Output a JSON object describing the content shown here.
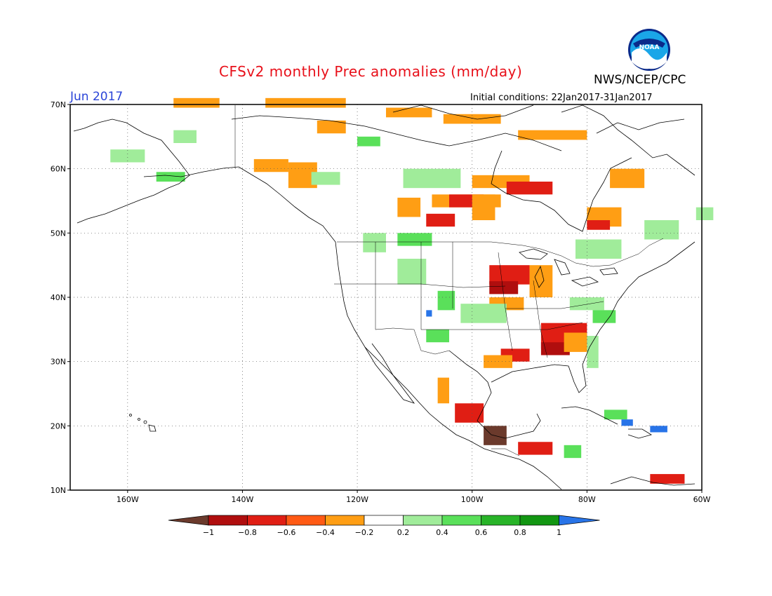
{
  "header": {
    "title": "CFSv2 monthly Prec anomalies (mm/day)",
    "agency": "NWS/NCEP/CPC",
    "logo_text": "NOAA",
    "valid_month": "Jun 2017",
    "initial_conditions": "Initial conditions: 22Jan2017-31Jan2017"
  },
  "map": {
    "lon_range": [
      -170,
      -60
    ],
    "lat_range": [
      10,
      70
    ],
    "lat_labels": [
      "70N",
      "60N",
      "50N",
      "40N",
      "30N",
      "20N",
      "10N"
    ],
    "lon_labels": [
      "160W",
      "140W",
      "120W",
      "100W",
      "80W",
      "60W"
    ],
    "grid": "dotted"
  },
  "colorbar": {
    "labels": [
      "−1",
      "−0.8",
      "−0.6",
      "−0.4",
      "−0.2",
      "0.2",
      "0.4",
      "0.6",
      "0.8",
      "1"
    ],
    "colors": [
      "#6b3a2c",
      "#b00e0e",
      "#e01e14",
      "#ff5a14",
      "#ff9e14",
      "#ffffff",
      "#a0ec9a",
      "#5ae05a",
      "#28b428",
      "#129612",
      "#2874e8"
    ]
  },
  "anomaly_regions": [
    {
      "category": "dry-0.4",
      "lon": -152,
      "lat": 69.5,
      "w": 8,
      "h": 1.5
    },
    {
      "category": "dry-0.4",
      "lon": -136,
      "lat": 69.5,
      "w": 14,
      "h": 1.5
    },
    {
      "category": "dry-0.4",
      "lon": -115,
      "lat": 68,
      "w": 8,
      "h": 1.5
    },
    {
      "category": "dry-0.4",
      "lon": -105,
      "lat": 67,
      "w": 10,
      "h": 1.5
    },
    {
      "category": "dry-0.4",
      "lon": -92,
      "lat": 64.5,
      "w": 12,
      "h": 1.5
    },
    {
      "category": "dry-0.4",
      "lon": -127,
      "lat": 65.5,
      "w": 5,
      "h": 2
    },
    {
      "category": "dry-0.4",
      "lon": -138,
      "lat": 59.5,
      "w": 6,
      "h": 2
    },
    {
      "category": "dry-0.4",
      "lon": -132,
      "lat": 57,
      "w": 5,
      "h": 4
    },
    {
      "category": "dry-0.4",
      "lon": -100,
      "lat": 57,
      "w": 10,
      "h": 2
    },
    {
      "category": "dry-0.6",
      "lon": -94,
      "lat": 56,
      "w": 8,
      "h": 2
    },
    {
      "category": "dry-0.4",
      "lon": -113,
      "lat": 52.5,
      "w": 4,
      "h": 3
    },
    {
      "category": "dry-0.4",
      "lon": -107,
      "lat": 54,
      "w": 12,
      "h": 2
    },
    {
      "category": "dry-0.6",
      "lon": -104,
      "lat": 54,
      "w": 6,
      "h": 2
    },
    {
      "category": "dry-0.4",
      "lon": -100,
      "lat": 52,
      "w": 4,
      "h": 4
    },
    {
      "category": "dry-0.6",
      "lon": -108,
      "lat": 51,
      "w": 5,
      "h": 2
    },
    {
      "category": "dry-0.4",
      "lon": -76,
      "lat": 57,
      "w": 6,
      "h": 3
    },
    {
      "category": "dry-0.4",
      "lon": -80,
      "lat": 51,
      "w": 6,
      "h": 3
    },
    {
      "category": "dry-0.6",
      "lon": -80,
      "lat": 50.5,
      "w": 4,
      "h": 1.5
    },
    {
      "category": "dry-0.6",
      "lon": -97,
      "lat": 42,
      "w": 7,
      "h": 3
    },
    {
      "category": "dry-0.8",
      "lon": -97,
      "lat": 40.5,
      "w": 5,
      "h": 2
    },
    {
      "category": "dry-0.4",
      "lon": -97,
      "lat": 38,
      "w": 6,
      "h": 2
    },
    {
      "category": "dry-0.4",
      "lon": -90,
      "lat": 40,
      "w": 4,
      "h": 5
    },
    {
      "category": "dry-0.6",
      "lon": -88,
      "lat": 32,
      "w": 8,
      "h": 4
    },
    {
      "category": "dry-0.8",
      "lon": -88,
      "lat": 31,
      "w": 5,
      "h": 2
    },
    {
      "category": "dry-0.4",
      "lon": -84,
      "lat": 31.5,
      "w": 4,
      "h": 3
    },
    {
      "category": "dry-0.6",
      "lon": -95,
      "lat": 30,
      "w": 5,
      "h": 2
    },
    {
      "category": "dry-0.4",
      "lon": -98,
      "lat": 29,
      "w": 5,
      "h": 2
    },
    {
      "category": "dry-0.6",
      "lon": -103,
      "lat": 20.5,
      "w": 5,
      "h": 3
    },
    {
      "category": "dry-0.4",
      "lon": -106,
      "lat": 23.5,
      "w": 2,
      "h": 4
    },
    {
      "category": "dry-1",
      "lon": -98,
      "lat": 17,
      "w": 4,
      "h": 3
    },
    {
      "category": "dry-0.6",
      "lon": -92,
      "lat": 15.5,
      "w": 6,
      "h": 2
    },
    {
      "category": "dry-0.6",
      "lon": -69,
      "lat": 11,
      "w": 6,
      "h": 1.5
    },
    {
      "category": "wet0.4",
      "lon": -163,
      "lat": 61,
      "w": 6,
      "h": 2
    },
    {
      "category": "wet0.6",
      "lon": -155,
      "lat": 58,
      "w": 5,
      "h": 1.5
    },
    {
      "category": "wet0.4",
      "lon": -152,
      "lat": 64,
      "w": 4,
      "h": 2
    },
    {
      "category": "wet0.4",
      "lon": -128,
      "lat": 57.5,
      "w": 5,
      "h": 2
    },
    {
      "category": "wet0.6",
      "lon": -120,
      "lat": 63.5,
      "w": 4,
      "h": 1.5
    },
    {
      "category": "wet0.4",
      "lon": -112,
      "lat": 57,
      "w": 10,
      "h": 3
    },
    {
      "category": "wet0.4",
      "lon": -119,
      "lat": 47,
      "w": 4,
      "h": 3
    },
    {
      "category": "wet0.6",
      "lon": -113,
      "lat": 48,
      "w": 6,
      "h": 2
    },
    {
      "category": "wet0.4",
      "lon": -113,
      "lat": 42,
      "w": 5,
      "h": 4
    },
    {
      "category": "wet0.6",
      "lon": -106,
      "lat": 38,
      "w": 3,
      "h": 3
    },
    {
      "category": "wet0.4",
      "lon": -102,
      "lat": 36,
      "w": 8,
      "h": 3
    },
    {
      "category": "wet0.6",
      "lon": -108,
      "lat": 33,
      "w": 4,
      "h": 2
    },
    {
      "category": "wet0.4",
      "lon": -82,
      "lat": 46,
      "w": 8,
      "h": 3
    },
    {
      "category": "wet0.4",
      "lon": -70,
      "lat": 49,
      "w": 6,
      "h": 3
    },
    {
      "category": "wet0.4",
      "lon": -61,
      "lat": 52,
      "w": 3,
      "h": 2
    },
    {
      "category": "wet0.4",
      "lon": -83,
      "lat": 38,
      "w": 6,
      "h": 2
    },
    {
      "category": "wet0.6",
      "lon": -79,
      "lat": 36,
      "w": 4,
      "h": 2
    },
    {
      "category": "wet0.4",
      "lon": -80,
      "lat": 29,
      "w": 2,
      "h": 5
    },
    {
      "category": "wet0.6",
      "lon": -77,
      "lat": 21,
      "w": 4,
      "h": 1.5
    },
    {
      "category": "wet0.6",
      "lon": -84,
      "lat": 15,
      "w": 3,
      "h": 2
    },
    {
      "category": "wet1",
      "lon": -74,
      "lat": 20,
      "w": 2,
      "h": 1
    },
    {
      "category": "wet1",
      "lon": -69,
      "lat": 19,
      "w": 3,
      "h": 1
    },
    {
      "category": "wet1",
      "lon": -108,
      "lat": 37,
      "w": 1,
      "h": 1
    }
  ]
}
